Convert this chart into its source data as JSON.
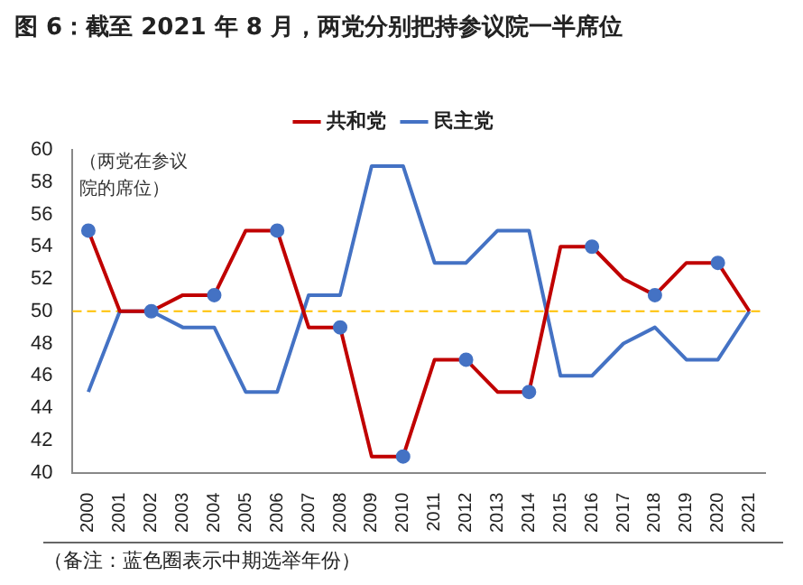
{
  "chart_data": {
    "type": "line",
    "title": "图 6：截至 2021 年 8 月，两党分别把持参议院一半席位",
    "categories": [
      "2000",
      "2001",
      "2002",
      "2003",
      "2004",
      "2005",
      "2006",
      "2007",
      "2008",
      "2009",
      "2010",
      "2011",
      "2012",
      "2013",
      "2014",
      "2015",
      "2016",
      "2017",
      "2018",
      "2019",
      "2020",
      "2021"
    ],
    "series": [
      {
        "name": "共和党",
        "color": "#c00000",
        "values": [
          55,
          50,
          50,
          51,
          51,
          55,
          55,
          49,
          49,
          41,
          41,
          47,
          47,
          45,
          45,
          54,
          54,
          52,
          51,
          53,
          53,
          50
        ]
      },
      {
        "name": "民主党",
        "color": "#4472c4",
        "values": [
          45,
          50,
          50,
          49,
          49,
          45,
          45,
          51,
          51,
          59,
          59,
          53,
          53,
          55,
          55,
          46,
          46,
          48,
          49,
          47,
          47,
          50
        ]
      },
      {
        "type": "scatter",
        "color": "#4472c4",
        "values": [
          55,
          null,
          50,
          null,
          51,
          null,
          55,
          null,
          49,
          null,
          41,
          null,
          47,
          null,
          45,
          null,
          54,
          null,
          51,
          null,
          53,
          null
        ]
      }
    ],
    "ylim": [
      40,
      60
    ],
    "yticks": [
      40,
      42,
      44,
      46,
      48,
      50,
      52,
      54,
      56,
      58,
      60
    ],
    "grid": false,
    "legend": "top",
    "line_style": "solid",
    "ref_lines": [
      {
        "axis": "y",
        "value": 50,
        "color": "#ffc000",
        "line_style": "dashed"
      }
    ],
    "annotations": [
      "（两党在参议院的席位）",
      "（备注：蓝色圈表示中期选举年份）"
    ]
  }
}
